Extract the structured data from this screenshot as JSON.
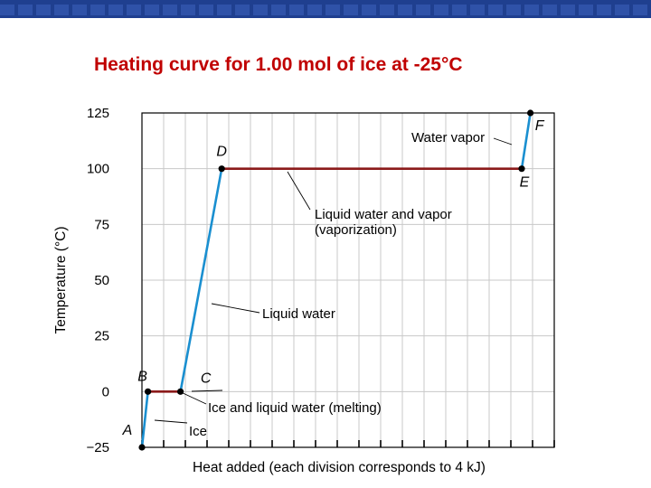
{
  "slide": {
    "title": "Heating curve for 1.00 mol of ice at -25°C",
    "title_color": "#c00000",
    "banner_color": "#1f3f8f"
  },
  "chart_data": {
    "type": "line",
    "xlabel": "Heat added (each division corresponds to 4 kJ)",
    "ylabel": "Temperature (°C)",
    "ylim": [
      -25,
      125
    ],
    "yticks": [
      -25,
      0,
      25,
      50,
      75,
      100,
      125
    ],
    "ytick_labels": [
      "−25",
      "0",
      "25",
      "50",
      "75",
      "100",
      "125"
    ],
    "x_unit_per_division_kJ": 4,
    "xlim": [
      0,
      76
    ],
    "x_divisions": [
      0,
      4,
      8,
      12,
      16,
      20,
      24,
      28,
      32,
      36,
      40,
      44,
      48,
      52,
      56,
      60,
      64,
      68,
      72,
      76
    ],
    "grid": true,
    "points": [
      {
        "label": "A",
        "x": 0,
        "y": -25
      },
      {
        "label": "B",
        "x": 1.1,
        "y": 0
      },
      {
        "label": "C",
        "x": 7.1,
        "y": 0
      },
      {
        "label": "D",
        "x": 14.7,
        "y": 100
      },
      {
        "label": "E",
        "x": 70.0,
        "y": 100
      },
      {
        "label": "F",
        "x": 71.6,
        "y": 125
      }
    ],
    "segments": [
      {
        "from": "A",
        "to": "B",
        "color": "#1a8fd0"
      },
      {
        "from": "B",
        "to": "C",
        "color": "#8b1a1a"
      },
      {
        "from": "C",
        "to": "D",
        "color": "#1a8fd0"
      },
      {
        "from": "D",
        "to": "E",
        "color": "#8b1a1a"
      },
      {
        "from": "E",
        "to": "F",
        "color": "#1a8fd0"
      }
    ],
    "annotations": [
      {
        "lines": [
          "Ice"
        ]
      },
      {
        "lines": [
          "Ice and liquid water (melting)"
        ]
      },
      {
        "lines": [
          "Liquid water"
        ]
      },
      {
        "lines": [
          "Liquid water and vapor",
          "(vaporization)"
        ]
      },
      {
        "lines": [
          "Water vapor"
        ]
      }
    ],
    "colors": {
      "heating": "#1a8fd0",
      "phase_change": "#8b1a1a",
      "grid": "#c8c8c8"
    }
  }
}
